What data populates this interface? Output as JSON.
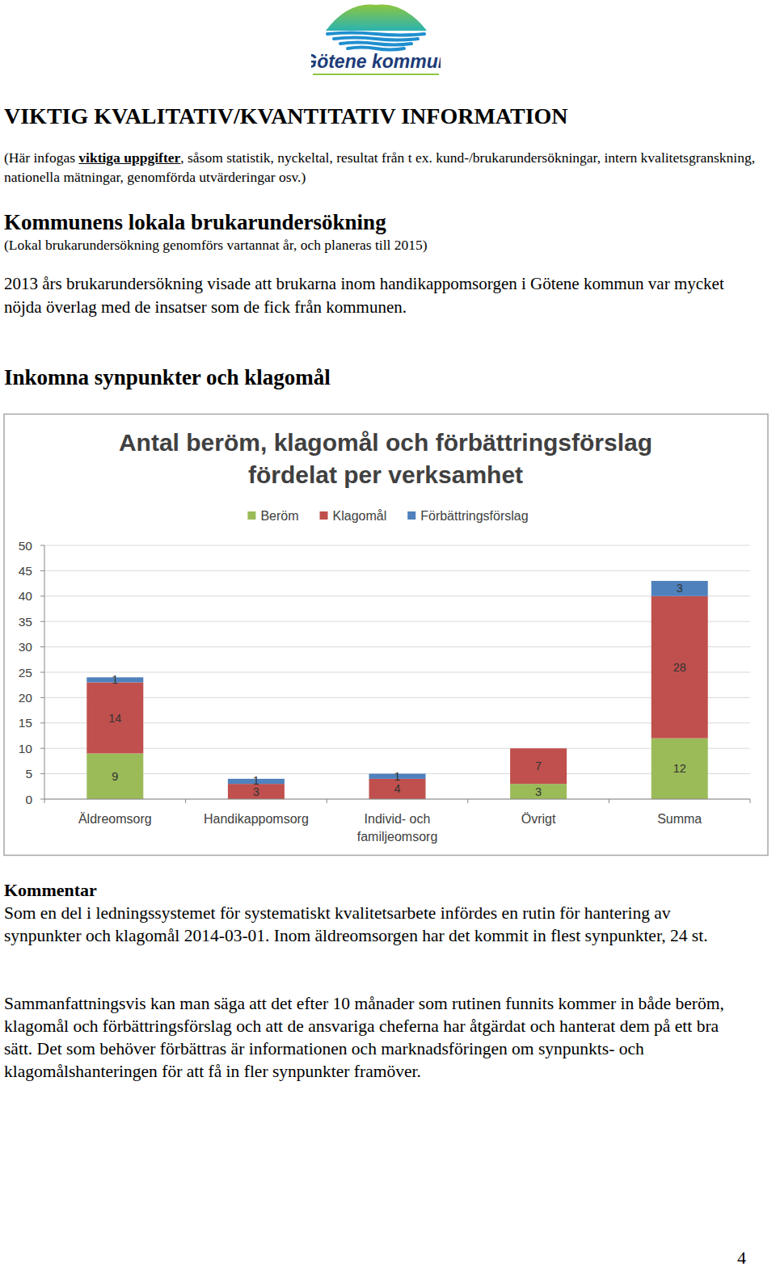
{
  "header": {
    "logo_text": "Götene kommun"
  },
  "title": "VIKTIG KVALITATIV/KVANTITATIV INFORMATION",
  "intro": {
    "before": "(Här infogas ",
    "bold": "viktiga uppgifter",
    "after": ", såsom statistik, nyckeltal, resultat från t ex. kund-/brukarundersökningar, intern kvalitetsgranskning, nationella mätningar, genomförda utvärderingar osv.)"
  },
  "sections": [
    {
      "heading": "Kommunens lokala brukarundersökning",
      "note": "(Lokal brukarundersökning genomförs vartannat år, och planeras till 2015)",
      "text": "2013 års brukarundersökning visade att brukarna inom handikappomsorgen i Götene kommun var mycket nöjda överlag med de insatser som de fick från kommunen."
    },
    {
      "heading": "Inkomna synpunkter och klagomål"
    }
  ],
  "chart_data": {
    "type": "bar",
    "title": "Antal beröm, klagomål och förbättringsförslag\nfördelat per verksamhet",
    "categories": [
      "Äldreomsorg",
      "Handikappomsorg",
      "Individ- och familjeomsorg",
      "Övrigt",
      "Summa"
    ],
    "series": [
      {
        "name": "Beröm",
        "color": "#9bbb59",
        "values": [
          9,
          0,
          0,
          3,
          12
        ]
      },
      {
        "name": "Klagomål",
        "color": "#c0504d",
        "values": [
          14,
          3,
          4,
          7,
          28
        ]
      },
      {
        "name": "Förbättringsförslag",
        "color": "#4f81bd",
        "values": [
          1,
          1,
          1,
          0,
          3
        ]
      }
    ],
    "ylim": [
      0,
      50
    ],
    "yticks": [
      0,
      5,
      10,
      15,
      20,
      25,
      30,
      35,
      40,
      45,
      50
    ],
    "stacked": true,
    "data_labels": true,
    "grid": true,
    "legend": "top"
  },
  "comment": {
    "heading": "Kommentar",
    "paragraphs": [
      "Som en del i ledningssystemet för systematiskt kvalitetsarbete infördes en rutin för hantering av synpunkter och klagomål 2014-03-01. Inom äldreomsorgen har det kommit in flest synpunkter, 24 st.",
      "Sammanfattningsvis kan man säga att det efter 10 månader som rutinen funnits kommer in både beröm, klagomål och förbättringsförslag och att de ansvariga cheferna har åtgärdat och hanterat dem på ett bra sätt. Det som behöver förbättras är informationen och marknadsföringen om synpunkts- och klagomålshanteringen för att få in fler synpunkter framöver."
    ]
  },
  "page_number": "4"
}
